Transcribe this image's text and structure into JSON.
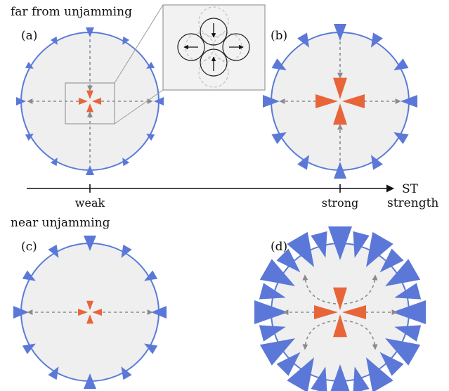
{
  "headings": {
    "far": "far from unjamming",
    "near": "near unjamming"
  },
  "panels": {
    "a": {
      "label": "(a)",
      "strength": "weak",
      "rays": "straight"
    },
    "b": {
      "label": "(b)",
      "strength": "strong",
      "rays": "straight"
    },
    "c": {
      "label": "(c)",
      "strength": "weak",
      "rays": "straight"
    },
    "d": {
      "label": "(d)",
      "strength": "strong",
      "rays": "curved"
    }
  },
  "axis": {
    "tick_weak": "weak",
    "tick_strong": "strong",
    "end_label_1": "ST",
    "end_label_2": "strength"
  },
  "colors": {
    "boundary": "#5a7bd6",
    "boundary_arrow": "#5b78d8",
    "core": "#e8653a",
    "ray": "#8a8a8a",
    "disk_fill": "#efefef",
    "inset_frame": "#9a9a9a",
    "ink": "#111111"
  },
  "icons": {
    "boundary_arrow": "triangle-arrowhead",
    "core": "four-point-orange-star",
    "ray": "dashed-arrow",
    "inset": "four-particle-cluster-with-arrows"
  }
}
